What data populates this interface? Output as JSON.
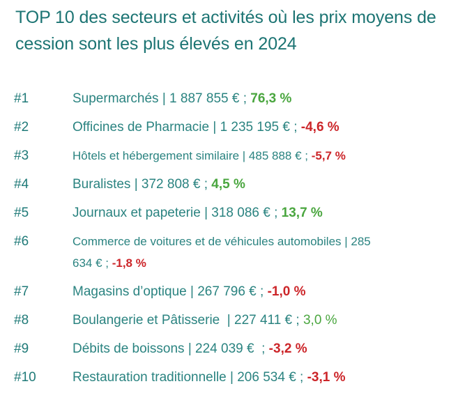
{
  "title": "TOP 10 des secteurs et activités où les prix moyens de cession sont les plus élevés en 2024",
  "colors": {
    "title": "#1c7473",
    "text": "#2a8380",
    "positive": "#4aa63f",
    "negative": "#cc2529"
  },
  "items": [
    {
      "rank": "#1",
      "label": "Supermarchés | 1 887 855 € ; ",
      "change": "76,3 %",
      "trend": "up"
    },
    {
      "rank": "#2",
      "label": "Officines de Pharmacie | 1 235 195 € ; ",
      "change": "-4,6 %",
      "trend": "down"
    },
    {
      "rank": "#3",
      "label": "Hôtels et hébergement similaire | 485 888 € ; ",
      "change": "-5,7 %",
      "trend": "down"
    },
    {
      "rank": "#4",
      "label": "Buralistes | 372 808 € ; ",
      "change": "4,5 %",
      "trend": "up"
    },
    {
      "rank": "#5",
      "label": "Journaux et papeterie | 318 086 € ; ",
      "change": "13,7 %",
      "trend": "up"
    },
    {
      "rank": "#6",
      "label": "Commerce de voitures et de véhicules automobiles | 285 634 € ; ",
      "change": "-1,8 %",
      "trend": "down"
    },
    {
      "rank": "#7",
      "label": "Magasins d’optique | 267 796 € ; ",
      "change": "-1,0 %",
      "trend": "down"
    },
    {
      "rank": "#8",
      "label": "Boulangerie et Pâtisserie  | 227 411 € ; ",
      "change": "3,0 %",
      "trend": "up"
    },
    {
      "rank": "#9",
      "label": "Débits de boissons | 224 039 €  ; ",
      "change": "-3,2 %",
      "trend": "down"
    },
    {
      "rank": "#10",
      "label": "Restauration traditionnelle | 206 534 € ; ",
      "change": "-3,1 %",
      "trend": "down"
    }
  ]
}
